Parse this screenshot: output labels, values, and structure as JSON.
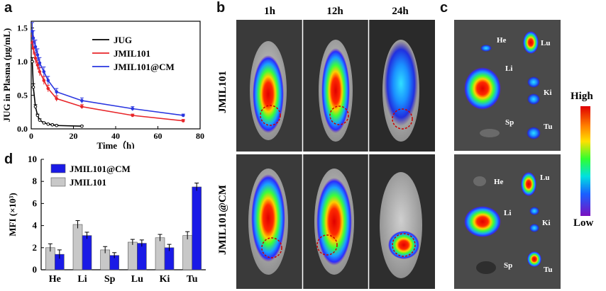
{
  "panels": {
    "a": "a",
    "b": "b",
    "c": "c",
    "d": "d"
  },
  "chart_data": [
    {
      "type": "line",
      "panel": "a",
      "xlabel": "Time（h)",
      "ylabel": "JUG in Plasma (μg/mL)",
      "xlim": [
        0,
        80
      ],
      "ylim": [
        0,
        1.6
      ],
      "xticks": [
        "0",
        "20",
        "40",
        "60",
        "80"
      ],
      "yticks": [
        "0.0",
        "0.5",
        "1.0",
        "1.5"
      ],
      "legend_position": "top-right",
      "series": [
        {
          "name": "JUG",
          "color": "#000000",
          "x": [
            0.5,
            1,
            2,
            3,
            4,
            6,
            8,
            10,
            12,
            24
          ],
          "y": [
            1.0,
            0.62,
            0.33,
            0.2,
            0.13,
            0.09,
            0.07,
            0.06,
            0.05,
            0.04
          ],
          "err": [
            0.06,
            0.05,
            0.03,
            0.02,
            0.02,
            0.01,
            0.01,
            0.01,
            0.01,
            0.01
          ]
        },
        {
          "name": "JMIL101",
          "color": "#e8262a",
          "x": [
            0.5,
            1,
            2,
            3,
            4,
            6,
            8,
            12,
            24,
            48,
            72
          ],
          "y": [
            1.28,
            1.2,
            1.05,
            0.95,
            0.85,
            0.72,
            0.6,
            0.45,
            0.33,
            0.2,
            0.12
          ],
          "err": [
            0.1,
            0.1,
            0.08,
            0.07,
            0.06,
            0.06,
            0.05,
            0.04,
            0.03,
            0.02,
            0.02
          ]
        },
        {
          "name": "JMIL101@CM",
          "color": "#2a36e0",
          "x": [
            0.5,
            1,
            2,
            3,
            4,
            6,
            8,
            12,
            24,
            48,
            72
          ],
          "y": [
            1.45,
            1.35,
            1.22,
            1.1,
            0.98,
            0.85,
            0.72,
            0.55,
            0.42,
            0.3,
            0.2
          ],
          "err": [
            0.13,
            0.11,
            0.1,
            0.09,
            0.08,
            0.07,
            0.06,
            0.05,
            0.04,
            0.03,
            0.02
          ]
        }
      ]
    },
    {
      "type": "bar",
      "panel": "d",
      "ylabel": "MFI (×10³)",
      "ylim": [
        0,
        10
      ],
      "yticks": [
        "0",
        "2",
        "4",
        "6",
        "8",
        "10"
      ],
      "categories": [
        "He",
        "Li",
        "Sp",
        "Lu",
        "Ki",
        "Tu"
      ],
      "legend_position": "top-left",
      "series": [
        {
          "name": "JMIL101@CM",
          "color": "#1a1ae6",
          "values": [
            1.4,
            3.1,
            1.3,
            2.4,
            2.0,
            7.5
          ],
          "err": [
            0.4,
            0.3,
            0.25,
            0.3,
            0.3,
            0.35
          ]
        },
        {
          "name": "JMIL101",
          "color": "#c8c8c8",
          "values": [
            2.0,
            4.1,
            1.8,
            2.5,
            2.9,
            3.1
          ],
          "err": [
            0.35,
            0.35,
            0.3,
            0.25,
            0.3,
            0.35
          ]
        }
      ]
    }
  ],
  "imaging": {
    "timepoints": [
      "1h",
      "12h",
      "24h"
    ],
    "rows": [
      "JMIL101",
      "JMIL101@CM"
    ],
    "organs": {
      "he": "He",
      "lu": "Lu",
      "li": "Li",
      "ki": "Ki",
      "sp": "Sp",
      "tu": "Tu"
    },
    "scale_high": "High",
    "scale_low": "Low"
  }
}
